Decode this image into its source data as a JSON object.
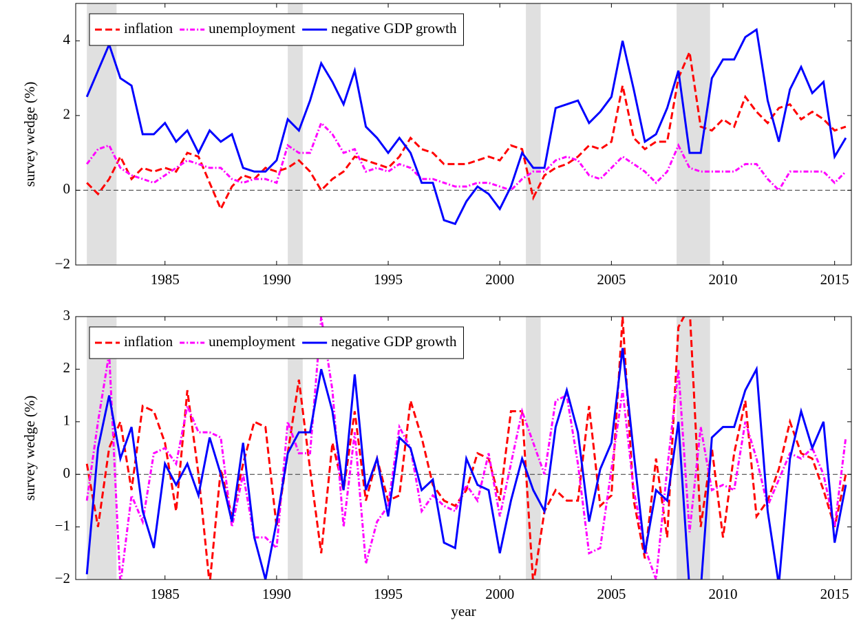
{
  "chart_data": [
    {
      "type": "line",
      "ylabel": "survey wedge (%)",
      "legend": "upper left",
      "hline": 0,
      "xlim": [
        1981,
        2015.75
      ],
      "ylim": [
        -2,
        5
      ],
      "xticks": [
        1985,
        1990,
        1995,
        2000,
        2005,
        2010,
        2015
      ],
      "yticks": [
        -2,
        0,
        2,
        4
      ],
      "recessions": [
        [
          1981.5,
          1982.83
        ],
        [
          1990.5,
          1991.17
        ],
        [
          2001.17,
          2001.83
        ],
        [
          2007.92,
          2009.42
        ]
      ],
      "x": [
        1981.5,
        1982,
        1982.5,
        1983,
        1983.5,
        1984,
        1984.5,
        1985,
        1985.5,
        1986,
        1986.5,
        1987,
        1987.5,
        1988,
        1988.5,
        1989,
        1989.5,
        1990,
        1990.5,
        1991,
        1991.5,
        1992,
        1992.5,
        1993,
        1993.5,
        1994,
        1994.5,
        1995,
        1995.5,
        1996,
        1996.5,
        1997,
        1997.5,
        1998,
        1998.5,
        1999,
        1999.5,
        2000,
        2000.5,
        2001,
        2001.5,
        2002,
        2002.5,
        2003,
        2003.5,
        2004,
        2004.5,
        2005,
        2005.5,
        2006,
        2006.5,
        2007,
        2007.5,
        2008,
        2008.5,
        2009,
        2009.5,
        2010,
        2010.5,
        2011,
        2011.5,
        2012,
        2012.5,
        2013,
        2013.5,
        2014,
        2014.5,
        2015,
        2015.5
      ],
      "series": [
        {
          "name": "inflation",
          "color": "#ff0000",
          "style": "dashed",
          "values": [
            0.2,
            -0.1,
            0.3,
            0.9,
            0.3,
            0.6,
            0.5,
            0.6,
            0.5,
            1.0,
            0.9,
            0.2,
            -0.5,
            0.1,
            0.4,
            0.3,
            0.6,
            0.5,
            0.6,
            0.8,
            0.5,
            0.0,
            0.3,
            0.5,
            0.9,
            0.8,
            0.7,
            0.6,
            0.9,
            1.4,
            1.1,
            1.0,
            0.7,
            0.7,
            0.7,
            0.8,
            0.9,
            0.8,
            1.2,
            1.1,
            -0.2,
            0.4,
            0.6,
            0.7,
            0.9,
            1.2,
            1.1,
            1.3,
            2.8,
            1.4,
            1.1,
            1.3,
            1.3,
            3.0,
            3.7,
            1.7,
            1.6,
            1.9,
            1.7,
            2.5,
            2.1,
            1.8,
            2.2,
            2.3,
            1.9,
            2.1,
            1.9,
            1.6,
            1.7
          ]
        },
        {
          "name": "unemployment",
          "color": "#ff00ff",
          "style": "dashdot",
          "values": [
            0.7,
            1.1,
            1.2,
            0.6,
            0.4,
            0.3,
            0.2,
            0.4,
            0.6,
            0.8,
            0.7,
            0.6,
            0.6,
            0.3,
            0.2,
            0.3,
            0.3,
            0.2,
            1.2,
            1.0,
            1.0,
            1.8,
            1.5,
            1.0,
            1.1,
            0.5,
            0.6,
            0.5,
            0.7,
            0.6,
            0.3,
            0.3,
            0.2,
            0.1,
            0.1,
            0.2,
            0.2,
            0.1,
            0.0,
            0.3,
            0.5,
            0.5,
            0.8,
            0.9,
            0.8,
            0.4,
            0.3,
            0.6,
            0.9,
            0.7,
            0.5,
            0.2,
            0.5,
            1.2,
            0.6,
            0.5,
            0.5,
            0.5,
            0.5,
            0.7,
            0.7,
            0.3,
            0.0,
            0.5,
            0.5,
            0.5,
            0.5,
            0.2,
            0.5
          ]
        },
        {
          "name": "negative GDP growth",
          "color": "#0000ff",
          "style": "solid",
          "values": [
            2.5,
            3.2,
            3.9,
            3.0,
            2.8,
            1.5,
            1.5,
            1.8,
            1.3,
            1.6,
            1.0,
            1.6,
            1.3,
            1.5,
            0.6,
            0.5,
            0.5,
            0.8,
            1.9,
            1.6,
            2.4,
            3.4,
            2.9,
            2.3,
            3.2,
            1.7,
            1.4,
            1.0,
            1.4,
            1.0,
            0.2,
            0.2,
            -0.8,
            -0.9,
            -0.3,
            0.1,
            -0.1,
            -0.5,
            0.1,
            1.0,
            0.6,
            0.6,
            2.2,
            2.3,
            2.4,
            1.8,
            2.1,
            2.5,
            4.0,
            2.7,
            1.3,
            1.5,
            2.2,
            3.2,
            1.0,
            1.0,
            3.0,
            3.5,
            3.5,
            4.1,
            4.3,
            2.4,
            1.3,
            2.7,
            3.3,
            2.6,
            2.9,
            0.9,
            1.4
          ]
        }
      ]
    },
    {
      "type": "line",
      "ylabel": "survey wedge (%)",
      "xlabel": "year",
      "legend": "upper left",
      "hline": 0,
      "xlim": [
        1981,
        2015.75
      ],
      "ylim": [
        -2,
        3
      ],
      "xticks": [
        1985,
        1990,
        1995,
        2000,
        2005,
        2010,
        2015
      ],
      "yticks": [
        -2,
        -1,
        0,
        1,
        2,
        3
      ],
      "recessions": [
        [
          1981.5,
          1982.83
        ],
        [
          1990.5,
          1991.17
        ],
        [
          2001.17,
          2001.83
        ],
        [
          2007.92,
          2009.42
        ]
      ],
      "x": [
        1981.5,
        1982,
        1982.5,
        1983,
        1983.5,
        1984,
        1984.5,
        1985,
        1985.5,
        1986,
        1986.5,
        1987,
        1987.5,
        1988,
        1988.5,
        1989,
        1989.5,
        1990,
        1990.5,
        1991,
        1991.5,
        1992,
        1992.5,
        1993,
        1993.5,
        1994,
        1994.5,
        1995,
        1995.5,
        1996,
        1996.5,
        1997,
        1997.5,
        1998,
        1998.5,
        1999,
        1999.5,
        2000,
        2000.5,
        2001,
        2001.5,
        2002,
        2002.5,
        2003,
        2003.5,
        2004,
        2004.5,
        2005,
        2005.5,
        2006,
        2006.5,
        2007,
        2007.5,
        2008,
        2008.5,
        2009,
        2009.5,
        2010,
        2010.5,
        2011,
        2011.5,
        2012,
        2012.5,
        2013,
        2013.5,
        2014,
        2014.5,
        2015,
        2015.5
      ],
      "series": [
        {
          "name": "inflation",
          "color": "#ff0000",
          "style": "dashed",
          "values": [
            0.2,
            -1.0,
            0.5,
            1.0,
            -0.3,
            1.3,
            1.2,
            0.6,
            -0.7,
            1.6,
            0.0,
            -2.1,
            0.1,
            -0.8,
            0.2,
            1.0,
            0.9,
            -1.0,
            0.4,
            1.8,
            0.1,
            -1.5,
            0.6,
            -0.3,
            1.2,
            -0.5,
            0.3,
            -0.5,
            -0.4,
            1.4,
            0.7,
            -0.2,
            -0.5,
            -0.6,
            -0.3,
            0.4,
            0.3,
            -0.5,
            1.2,
            1.2,
            -2.1,
            -0.7,
            -0.3,
            -0.5,
            -0.5,
            1.3,
            -0.6,
            -0.4,
            3.0,
            -0.5,
            -1.6,
            0.3,
            -1.2,
            2.8,
            3.2,
            -1.0,
            0.5,
            -1.2,
            0.4,
            1.4,
            -0.8,
            -0.5,
            0.1,
            1.0,
            0.4,
            0.3,
            -0.3,
            -1.0,
            0.0
          ]
        },
        {
          "name": "unemployment",
          "color": "#ff00ff",
          "style": "dashdot",
          "values": [
            -0.5,
            1.0,
            2.3,
            -2.1,
            -0.4,
            -0.9,
            0.4,
            0.5,
            0.2,
            1.3,
            0.8,
            0.8,
            0.7,
            -1.0,
            0.0,
            -1.2,
            -1.2,
            -1.4,
            1.0,
            0.4,
            0.4,
            3.0,
            1.6,
            -1.0,
            0.8,
            -1.7,
            -0.9,
            -0.6,
            0.9,
            0.5,
            -0.7,
            -0.4,
            -0.6,
            -0.7,
            -0.2,
            -0.5,
            0.4,
            -0.8,
            0.2,
            1.2,
            0.6,
            0.0,
            1.4,
            1.5,
            0.2,
            -1.5,
            -1.4,
            0.1,
            1.6,
            -0.3,
            -1.4,
            -2.0,
            0.1,
            2.0,
            -1.1,
            0.9,
            -0.3,
            -0.2,
            -0.3,
            1.0,
            0.3,
            -0.6,
            -0.1,
            0.4,
            0.3,
            0.5,
            0.0,
            -1.0,
            0.7
          ]
        },
        {
          "name": "negative GDP growth",
          "color": "#0000ff",
          "style": "solid",
          "values": [
            -1.9,
            0.5,
            1.5,
            0.3,
            0.9,
            -0.7,
            -1.4,
            0.2,
            -0.2,
            0.2,
            -0.4,
            0.7,
            0.0,
            -0.9,
            0.6,
            -1.2,
            -2.0,
            -0.9,
            0.4,
            0.8,
            0.8,
            2.0,
            1.2,
            -0.3,
            1.9,
            -0.3,
            0.3,
            -0.8,
            0.7,
            0.5,
            -0.3,
            -0.1,
            -1.3,
            -1.4,
            0.3,
            -0.2,
            -0.3,
            -1.5,
            -0.5,
            0.3,
            -0.3,
            -0.7,
            0.9,
            1.6,
            0.8,
            -0.9,
            0.1,
            0.6,
            2.4,
            0.4,
            -1.5,
            -0.3,
            -0.5,
            1.0,
            -2.2,
            -2.2,
            0.7,
            0.9,
            0.9,
            1.6,
            2.0,
            -0.7,
            -2.1,
            0.3,
            1.2,
            0.5,
            1.0,
            -1.3,
            -0.2
          ]
        }
      ]
    }
  ]
}
